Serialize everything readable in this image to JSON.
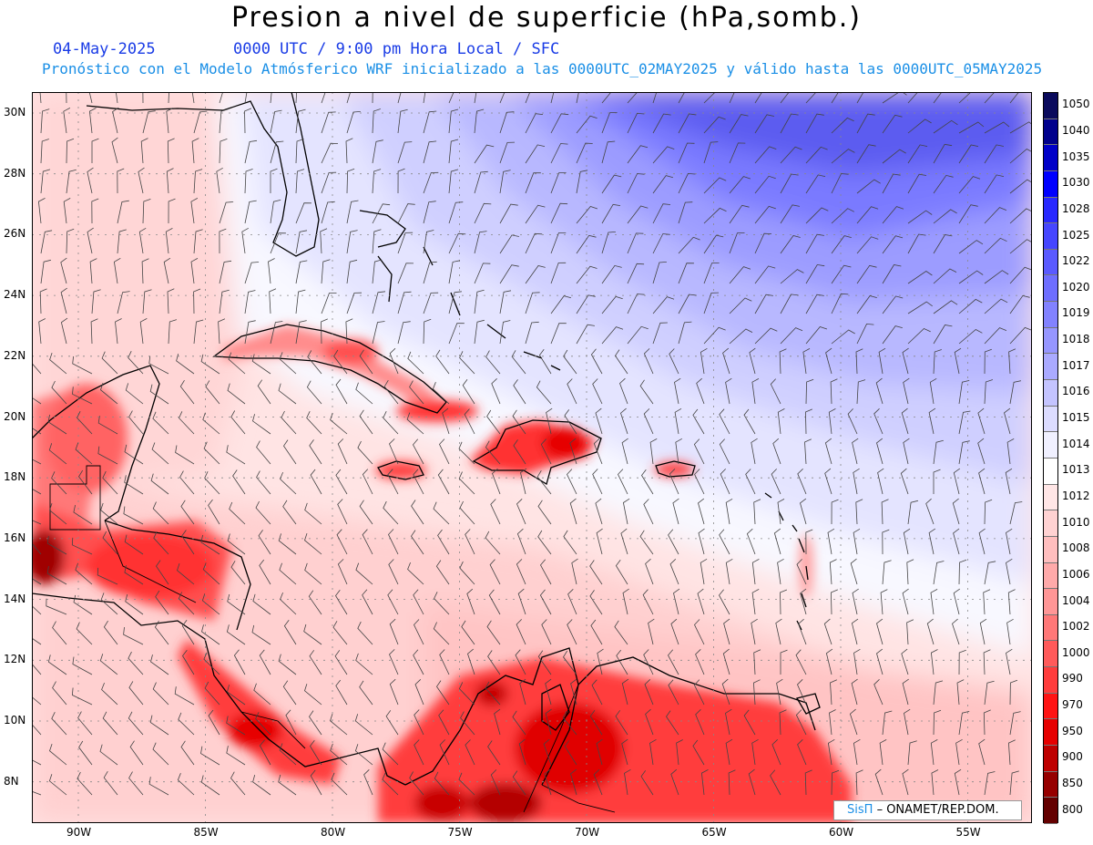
{
  "header": {
    "title": "Presion a nivel de superficie (hPa,somb.)",
    "date": "04-May-2025",
    "time_info": "0000 UTC / 9:00 pm Hora Local / SFC",
    "model_info": "Pronóstico con el Modelo Atmósferico WRF inicializado a las 0000UTC_02MAY2025 y válido hasta las  0000UTC_05MAY2025"
  },
  "colorbar": {
    "labels": [
      "1050",
      "1040",
      "1035",
      "1030",
      "1028",
      "1025",
      "1022",
      "1020",
      "1019",
      "1018",
      "1017",
      "1016",
      "1015",
      "1014",
      "1013",
      "1012",
      "1010",
      "1008",
      "1006",
      "1004",
      "1002",
      "1000",
      "990",
      "970",
      "950",
      "900",
      "850",
      "800"
    ],
    "colors": [
      "#0a0a5c",
      "#00008c",
      "#0000c8",
      "#0000ff",
      "#2828ff",
      "#4646ff",
      "#5a5aff",
      "#6e6eff",
      "#8282ff",
      "#9696ff",
      "#aaaaff",
      "#c4c4ff",
      "#dcdcff",
      "#f0f0ff",
      "#ffffff",
      "#ffe6e6",
      "#ffd2d2",
      "#ffbebe",
      "#ffaaaa",
      "#ff9696",
      "#ff7878",
      "#ff5a5a",
      "#ff3c3c",
      "#ff1414",
      "#e60000",
      "#be0000",
      "#960000",
      "#640000"
    ]
  },
  "axes": {
    "lat_labels": [
      "30N",
      "28N",
      "26N",
      "24N",
      "22N",
      "20N",
      "18N",
      "16N",
      "14N",
      "12N",
      "10N",
      "8N"
    ],
    "lon_labels": [
      "90W",
      "85W",
      "80W",
      "75W",
      "70W",
      "65W",
      "60W",
      "55W"
    ]
  },
  "credit": {
    "brand": "SisΠ",
    "text": "– ONAMET/REP.DOM."
  }
}
